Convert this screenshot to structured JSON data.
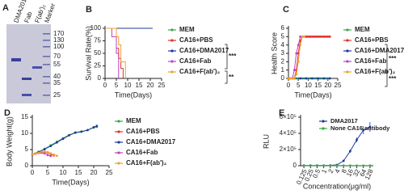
{
  "gel": {
    "panel": "A",
    "lanes": [
      "DMA2017",
      "Fab",
      "F(ab')₂",
      "Marker"
    ],
    "marker_sizes": [
      170,
      130,
      100,
      70,
      55,
      40,
      35,
      25
    ]
  },
  "chart_data": [
    {
      "type": "line",
      "panel": "B",
      "step": true,
      "ylabel": "Survival Rate(%)",
      "xlabel": "Time(Days)",
      "xlim": [
        0,
        25
      ],
      "xticks": [
        0,
        5,
        10,
        15,
        20,
        25
      ],
      "ylim": [
        0,
        100
      ],
      "yticks": [
        0,
        25,
        50,
        75,
        100
      ],
      "annotations": [
        "***",
        "**"
      ],
      "series": [
        {
          "name": "MEM",
          "color": "#3aa845",
          "x": [
            0,
            21
          ],
          "values": [
            100,
            100
          ]
        },
        {
          "name": "CA16+PBS",
          "color": "#e0302c",
          "x": [
            0,
            5,
            6,
            7,
            8
          ],
          "values": [
            100,
            60,
            40,
            20,
            0
          ]
        },
        {
          "name": "CA16+DMA2017",
          "color": "#1c3a9e",
          "x": [
            0,
            21
          ],
          "values": [
            100,
            100
          ]
        },
        {
          "name": "CA16+Fab",
          "color": "#c23fc0",
          "x": [
            0,
            3,
            5,
            6
          ],
          "values": [
            100,
            83,
            50,
            0
          ]
        },
        {
          "name": "CA16+F(ab')₂",
          "color": "#f0a030",
          "x": [
            0,
            5,
            6,
            7,
            9
          ],
          "values": [
            100,
            83,
            67,
            33,
            0
          ]
        }
      ]
    },
    {
      "type": "line",
      "panel": "C",
      "markers": true,
      "ylabel": "Health Score",
      "xlabel": "Time(Days)",
      "xlim": [
        0,
        25
      ],
      "xticks": [
        0,
        5,
        10,
        15,
        20,
        25
      ],
      "ylim": [
        0,
        6
      ],
      "yticks": [
        0,
        1,
        2,
        3,
        4,
        5,
        6
      ],
      "annotations": [
        "***",
        "***"
      ],
      "series": [
        {
          "name": "MEM",
          "color": "#3aa845",
          "x": [
            0,
            1,
            2,
            3,
            4,
            5,
            6,
            7,
            8,
            9,
            10,
            11,
            12,
            13,
            14,
            15,
            16,
            17,
            18,
            19,
            20,
            21
          ],
          "values": [
            0,
            0,
            0,
            0,
            0,
            0,
            0,
            0,
            0,
            0,
            0,
            0,
            0,
            0,
            0,
            0,
            0,
            0,
            0,
            0,
            0,
            0
          ]
        },
        {
          "name": "CA16+PBS",
          "color": "#e0302c",
          "x": [
            0,
            1,
            2,
            3,
            4,
            5,
            6,
            7,
            8,
            9,
            10,
            11,
            12,
            13,
            14,
            15,
            16,
            17,
            18,
            19,
            20,
            21
          ],
          "values": [
            0,
            0,
            0,
            0,
            1,
            3,
            4.5,
            5,
            5,
            5,
            5,
            5,
            5,
            5,
            5,
            5,
            5,
            5,
            5,
            5,
            5,
            5
          ]
        },
        {
          "name": "CA16+DMA2017",
          "color": "#1c3a9e",
          "x": [
            0,
            3,
            6,
            9,
            12,
            15,
            18,
            21
          ],
          "values": [
            0,
            0,
            0,
            0,
            0,
            0,
            0,
            0
          ]
        },
        {
          "name": "CA16+Fab",
          "color": "#c23fc0",
          "x": [
            0,
            1,
            2,
            3,
            4,
            5,
            6
          ],
          "values": [
            0,
            0,
            0,
            1,
            3,
            4,
            5
          ]
        },
        {
          "name": "CA16+F(ab')₂",
          "color": "#f0a030",
          "x": [
            0,
            1,
            2,
            3,
            4,
            5,
            6,
            7,
            8
          ],
          "values": [
            0,
            0,
            0,
            0,
            0.5,
            2,
            4,
            5,
            5
          ]
        }
      ]
    },
    {
      "type": "line",
      "panel": "D",
      "markers": true,
      "ylabel": "Body Weight(g)",
      "xlabel": "Time(Days)",
      "xlim": [
        0,
        25
      ],
      "xticks": [
        0,
        5,
        10,
        15,
        20,
        25
      ],
      "ylim": [
        0,
        15
      ],
      "yticks": [
        0,
        5,
        10,
        15
      ],
      "series": [
        {
          "name": "MEM",
          "color": "#3aa845",
          "x": [
            0,
            2,
            4,
            6,
            8,
            10,
            12,
            14,
            16,
            18,
            20,
            21
          ],
          "values": [
            3.5,
            4.3,
            5.2,
            6.3,
            7.4,
            8.5,
            9.5,
            10.3,
            10.6,
            11,
            11.8,
            12
          ]
        },
        {
          "name": "CA16+PBS",
          "color": "#e0302c",
          "x": [
            0,
            1,
            2,
            3,
            4,
            5,
            6,
            7
          ],
          "values": [
            3.5,
            3.8,
            4,
            4.2,
            4.3,
            4.1,
            3.6,
            3.2
          ]
        },
        {
          "name": "CA16+DMA2017",
          "color": "#1c3a9e",
          "x": [
            0,
            2,
            4,
            6,
            8,
            10,
            12,
            14,
            16,
            18,
            20,
            21
          ],
          "values": [
            3.4,
            4.2,
            5.1,
            6.1,
            7.2,
            8.3,
            9.4,
            10.2,
            10.5,
            11,
            11.9,
            12.3
          ]
        },
        {
          "name": "CA16+Fab",
          "color": "#c23fc0",
          "x": [
            0,
            1,
            2,
            3,
            4,
            5,
            6
          ],
          "values": [
            3.5,
            3.7,
            3.9,
            4,
            3.8,
            3.3,
            3
          ]
        },
        {
          "name": "CA16+F(ab')₂",
          "color": "#f0a030",
          "x": [
            0,
            1,
            2,
            3,
            4,
            5,
            6,
            7,
            8
          ],
          "values": [
            3.5,
            3.8,
            4,
            4.3,
            4.4,
            4.2,
            3.8,
            3.4,
            3.1
          ]
        }
      ]
    },
    {
      "type": "line",
      "panel": "E",
      "markers": true,
      "ylabel": "RLU",
      "xlabel": "Concentration(μg/ml)",
      "categories": [
        "0.125",
        "0.25",
        "0.5",
        "1",
        "2",
        "4",
        "8",
        "16",
        "32",
        "64",
        "128"
      ],
      "ylim": [
        0,
        600000
      ],
      "yticks": [
        0,
        {
          "value": 200000,
          "label": "2×10⁵"
        },
        {
          "value": 400000,
          "label": "4×10⁵"
        },
        {
          "value": 600000,
          "label": "6×10⁵"
        }
      ],
      "series": [
        {
          "name": "DMA2017",
          "color": "#1c3a9e",
          "values": [
            3000,
            3000,
            3000,
            4000,
            5000,
            10000,
            60000,
            180000,
            320000,
            440000,
            480000
          ],
          "errors": [
            0,
            0,
            0,
            0,
            0,
            3000,
            15000,
            20000,
            30000,
            50000,
            60000
          ]
        },
        {
          "name": "None CA16 antibody",
          "color": "#3aa845",
          "values": [
            2000,
            2000,
            2000,
            2000,
            2000,
            2000,
            2000,
            2000,
            2000,
            2000,
            2000
          ]
        }
      ]
    }
  ]
}
